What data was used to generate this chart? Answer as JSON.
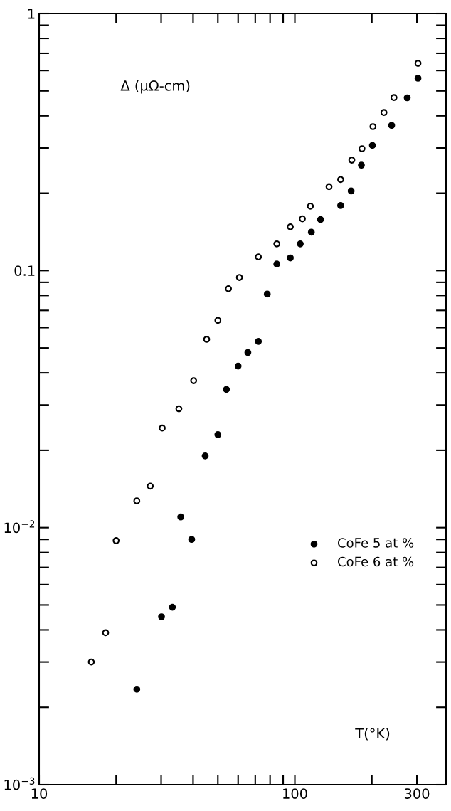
{
  "chart_data": {
    "type": "scatter",
    "xlabel": "T(°K)",
    "ylabel": "Δ (μΩ-cm)",
    "log": "xy",
    "xlim": [
      10,
      390
    ],
    "ylim": [
      0.001,
      1
    ],
    "xticks": [
      10,
      {
        "value": 20,
        "label": null
      },
      {
        "value": 30,
        "label": null
      },
      {
        "value": 40,
        "label": null
      },
      {
        "value": 50,
        "label": null
      },
      {
        "value": 60,
        "label": null
      },
      {
        "value": 70,
        "label": null
      },
      {
        "value": 80,
        "label": null
      },
      {
        "value": 90,
        "label": null
      },
      100,
      {
        "value": 200,
        "label": null
      },
      300
    ],
    "yticks": [
      {
        "value": 0.001,
        "label": "10$^{−3}$"
      },
      {
        "value": 0.002,
        "label": null
      },
      {
        "value": 0.003,
        "label": null
      },
      {
        "value": 0.004,
        "label": null
      },
      {
        "value": 0.005,
        "label": null
      },
      {
        "value": 0.006,
        "label": null
      },
      {
        "value": 0.007,
        "label": null
      },
      {
        "value": 0.008,
        "label": null
      },
      {
        "value": 0.009,
        "label": null
      },
      {
        "value": 0.01,
        "label": "10$^{−2}$"
      },
      {
        "value": 0.02,
        "label": null
      },
      {
        "value": 0.03,
        "label": null
      },
      {
        "value": 0.04,
        "label": null
      },
      {
        "value": 0.05,
        "label": null
      },
      {
        "value": 0.06,
        "label": null
      },
      {
        "value": 0.07,
        "label": null
      },
      {
        "value": 0.08,
        "label": null
      },
      {
        "value": 0.09,
        "label": null
      },
      0.1,
      {
        "value": 0.2,
        "label": null
      },
      {
        "value": 0.3,
        "label": null
      },
      {
        "value": 0.4,
        "label": null
      },
      {
        "value": 0.5,
        "label": null
      },
      {
        "value": 0.6,
        "label": null
      },
      {
        "value": 0.7,
        "label": null
      },
      {
        "value": 0.8,
        "label": null
      },
      {
        "value": 0.9,
        "label": null
      },
      1
    ],
    "grid": false,
    "legend": "right",
    "marker": "circle",
    "series": [
      {
        "name": "CoFe 5 at %",
        "color": "#000000",
        "x": [
          24.1,
          30.1,
          33.2,
          35.8,
          39.5,
          44.6,
          50,
          54,
          60,
          65.5,
          72,
          78,
          85,
          96,
          105,
          116,
          126,
          151,
          166,
          182,
          201,
          239,
          275,
          303
        ],
        "values": [
          0.00235,
          0.0045,
          0.0049,
          0.011,
          0.009,
          0.019,
          0.023,
          0.0345,
          0.0425,
          0.048,
          0.053,
          0.081,
          0.106,
          0.112,
          0.127,
          0.141,
          0.158,
          0.179,
          0.204,
          0.257,
          0.307,
          0.367,
          0.47,
          0.56
        ]
      },
      {
        "name": "CoFe 6 at %",
        "color": "#000000",
        "x": [
          16,
          18.2,
          20,
          24.1,
          27.2,
          30.3,
          35.2,
          40.2,
          45.2,
          50,
          55,
          60.7,
          72,
          85,
          96,
          107,
          115,
          136,
          151,
          167,
          183,
          202,
          223,
          244,
          303
        ],
        "values": [
          0.003,
          0.0039,
          0.0089,
          0.0127,
          0.0145,
          0.0244,
          0.029,
          0.0373,
          0.054,
          0.064,
          0.085,
          0.094,
          0.113,
          0.127,
          0.148,
          0.159,
          0.178,
          0.212,
          0.226,
          0.269,
          0.298,
          0.363,
          0.412,
          0.471,
          0.64
        ]
      }
    ]
  }
}
